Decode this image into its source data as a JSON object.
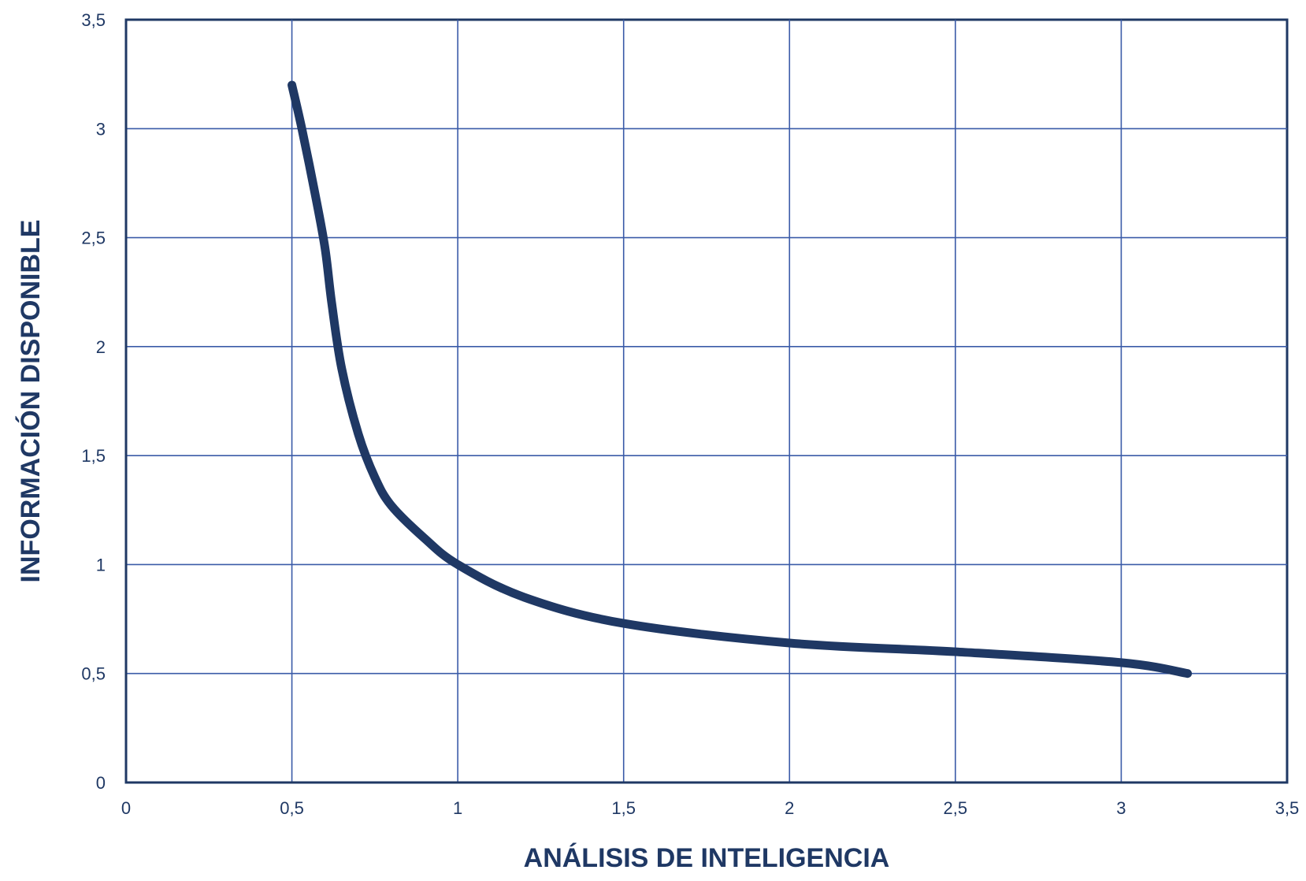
{
  "chart_data": {
    "type": "line",
    "title": "",
    "xlabel": "ANÁLISIS DE INTELIGENCIA",
    "ylabel": "INFORMACIÓN DISPONIBLE",
    "xlim": [
      0,
      3.5
    ],
    "ylim": [
      0,
      3.5
    ],
    "x_ticks": [
      "0",
      "0,5",
      "1",
      "1,5",
      "2",
      "2,5",
      "3",
      "3,5"
    ],
    "y_ticks": [
      "0",
      "0,5",
      "1",
      "1,5",
      "2",
      "2,5",
      "3",
      "3,5"
    ],
    "grid": true,
    "colors": {
      "line": "#1f3864",
      "grid": "#3a5ba8",
      "axis": "#1f3864",
      "text": "#1f3864"
    },
    "series": [
      {
        "x": [
          0.5,
          0.53,
          0.57,
          0.6,
          0.62,
          0.65,
          0.7,
          0.75,
          0.8,
          0.9,
          1.0,
          1.2,
          1.5,
          2.0,
          2.5,
          3.0,
          3.2
        ],
        "y": [
          3.2,
          3.0,
          2.7,
          2.45,
          2.2,
          1.9,
          1.6,
          1.4,
          1.27,
          1.12,
          1.0,
          0.85,
          0.73,
          0.64,
          0.6,
          0.55,
          0.5
        ]
      }
    ]
  }
}
